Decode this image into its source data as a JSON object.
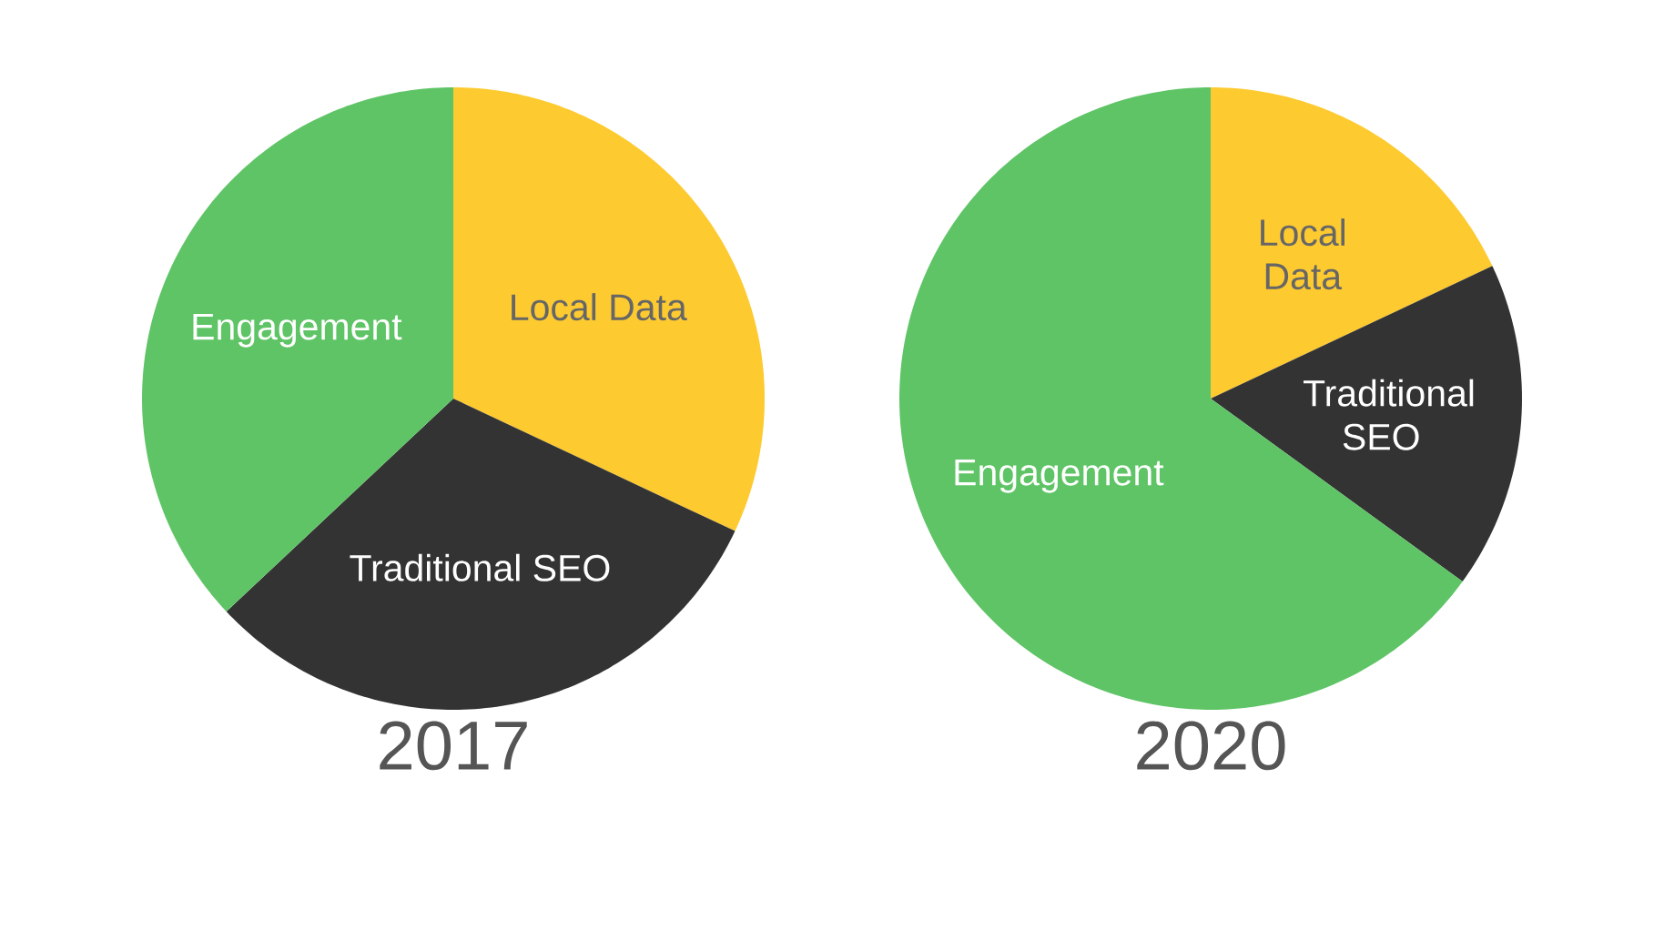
{
  "chart_data": [
    {
      "type": "pie",
      "title": "2017",
      "categories": [
        "Local Data",
        "Traditional SEO",
        "Engagement"
      ],
      "values": [
        32,
        31,
        37
      ],
      "colors": [
        "#fdca30",
        "#333333",
        "#5fc466"
      ]
    },
    {
      "type": "pie",
      "title": "2020",
      "categories": [
        "Local Data",
        "Traditional SEO",
        "Engagement"
      ],
      "values": [
        18,
        17,
        65
      ],
      "colors": [
        "#fdca30",
        "#333333",
        "#5fc466"
      ]
    }
  ]
}
